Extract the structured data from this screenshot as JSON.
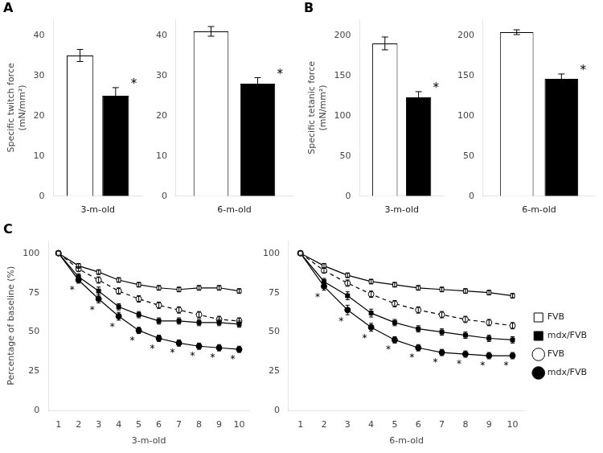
{
  "chart_data": [
    {
      "type": "bar",
      "title": "A",
      "categories": [
        "3-m-old"
      ],
      "series": [
        {
          "name": "FVB",
          "color": "#ffffff",
          "values": [
            35
          ],
          "errors": [
            1.5
          ]
        },
        {
          "name": "mdx/FVB",
          "color": "#000000",
          "values": [
            25
          ],
          "errors": [
            2.0
          ]
        }
      ],
      "ylabel": "Specific twitch force\n(mN/mm²)",
      "ylim": [
        0,
        44
      ],
      "yticks": [
        0,
        10,
        20,
        30,
        40
      ],
      "grid": false,
      "annotations": [
        {
          "text": "*",
          "series": "mdx/FVB",
          "category": "3-m-old"
        }
      ]
    },
    {
      "type": "bar",
      "categories": [
        "6-m-old"
      ],
      "series": [
        {
          "name": "FVB",
          "color": "#ffffff",
          "values": [
            41
          ],
          "errors": [
            1.2
          ]
        },
        {
          "name": "mdx/FVB",
          "color": "#000000",
          "values": [
            28
          ],
          "errors": [
            1.5
          ]
        }
      ],
      "ylim": [
        0,
        44
      ],
      "yticks": [
        0,
        10,
        20,
        30,
        40
      ],
      "grid": false,
      "annotations": [
        {
          "text": "*",
          "series": "mdx/FVB",
          "category": "6-m-old"
        }
      ]
    },
    {
      "type": "bar",
      "title": "B",
      "categories": [
        "3-m-old"
      ],
      "series": [
        {
          "name": "FVB",
          "color": "#ffffff",
          "values": [
            190
          ],
          "errors": [
            8
          ]
        },
        {
          "name": "mdx/FVB",
          "color": "#000000",
          "values": [
            123
          ],
          "errors": [
            7
          ]
        }
      ],
      "ylabel": "Specific tetanic force\n(mN/mm²)",
      "ylim": [
        0,
        220
      ],
      "yticks": [
        0,
        50,
        100,
        150,
        200
      ],
      "grid": false,
      "annotations": [
        {
          "text": "*",
          "series": "mdx/FVB",
          "category": "3-m-old"
        }
      ]
    },
    {
      "type": "bar",
      "categories": [
        "6-m-old"
      ],
      "series": [
        {
          "name": "FVB",
          "color": "#ffffff",
          "values": [
            204
          ],
          "errors": [
            3
          ]
        },
        {
          "name": "mdx/FVB",
          "color": "#000000",
          "values": [
            146
          ],
          "errors": [
            6
          ]
        }
      ],
      "ylim": [
        0,
        220
      ],
      "yticks": [
        0,
        50,
        100,
        150,
        200
      ],
      "grid": false,
      "annotations": [
        {
          "text": "*",
          "series": "mdx/FVB",
          "category": "6-m-old"
        }
      ]
    },
    {
      "type": "line",
      "title": "C",
      "x": [
        1,
        2,
        3,
        4,
        5,
        6,
        7,
        8,
        9,
        10
      ],
      "xlim": [
        0.5,
        10.5
      ],
      "xticks": [
        1,
        2,
        3,
        4,
        5,
        6,
        7,
        8,
        9,
        10
      ],
      "xlabel": "3-m-old",
      "ylabel": "Percentage of baseline (%)",
      "ylim": [
        0,
        108
      ],
      "yticks": [
        0,
        25,
        50,
        75,
        100
      ],
      "grid": false,
      "series": [
        {
          "name": "FVB",
          "color": "#ffffff",
          "marker": "square",
          "line_style": "solid",
          "values": [
            100,
            92,
            88,
            83,
            80,
            78,
            77,
            78,
            78,
            76
          ],
          "errors": [
            0,
            1.5,
            1.5,
            1.5,
            1.5,
            1.5,
            1.5,
            1.5,
            1.5,
            1.5
          ]
        },
        {
          "name": "mdx/FVB",
          "color": "#000000",
          "marker": "square",
          "line_style": "solid",
          "values": [
            100,
            85,
            76,
            66,
            61,
            57,
            57,
            56,
            56,
            55
          ],
          "errors": [
            0,
            2,
            2.5,
            2,
            2,
            2,
            2,
            2,
            2,
            2
          ]
        },
        {
          "name": "FVB",
          "color": "#ffffff",
          "marker": "circle",
          "line_style": "dashed",
          "values": [
            100,
            90,
            83,
            76,
            71,
            67,
            64,
            61,
            58,
            57
          ],
          "errors": [
            0,
            1.5,
            2,
            2,
            2,
            2,
            2,
            2,
            2,
            2
          ]
        },
        {
          "name": "mdx/FVB",
          "color": "#000000",
          "marker": "circle",
          "line_style": "solid",
          "values": [
            100,
            83,
            71,
            60,
            51,
            46,
            43,
            41,
            40,
            39
          ],
          "errors": [
            0,
            2,
            2.5,
            2.5,
            2,
            2,
            2,
            2,
            2,
            2
          ]
        }
      ],
      "annotations": [
        {
          "text": "*",
          "x": 2
        },
        {
          "text": "*",
          "x": 3
        },
        {
          "text": "*",
          "x": 4
        },
        {
          "text": "*",
          "x": 5
        },
        {
          "text": "*",
          "x": 6
        },
        {
          "text": "*",
          "x": 7
        },
        {
          "text": "*",
          "x": 8
        },
        {
          "text": "*",
          "x": 9
        },
        {
          "text": "*",
          "x": 10
        }
      ]
    },
    {
      "type": "line",
      "x": [
        1,
        2,
        3,
        4,
        5,
        6,
        7,
        8,
        9,
        10
      ],
      "xlim": [
        0.5,
        10.5
      ],
      "xticks": [
        1,
        2,
        3,
        4,
        5,
        6,
        7,
        8,
        9,
        10
      ],
      "xlabel": "6-m-old",
      "ylim": [
        0,
        108
      ],
      "yticks": [
        0,
        25,
        50,
        75,
        100
      ],
      "grid": false,
      "legend": "right",
      "series": [
        {
          "name": "FVB",
          "color": "#ffffff",
          "marker": "square",
          "line_style": "solid",
          "values": [
            100,
            92,
            86,
            82,
            80,
            78,
            77,
            76,
            75,
            73
          ],
          "errors": [
            0,
            1.5,
            1.5,
            1.5,
            1.5,
            1.5,
            1.5,
            1.5,
            1.5,
            1.5
          ]
        },
        {
          "name": "mdx/FVB",
          "color": "#000000",
          "marker": "square",
          "line_style": "solid",
          "values": [
            100,
            82,
            73,
            62,
            56,
            52,
            50,
            48,
            46,
            45
          ],
          "errors": [
            0,
            2,
            2.5,
            2.5,
            2,
            2,
            2,
            2,
            2,
            2
          ]
        },
        {
          "name": "FVB",
          "color": "#ffffff",
          "marker": "circle",
          "line_style": "dashed",
          "values": [
            100,
            89,
            81,
            74,
            68,
            64,
            61,
            58,
            56,
            54
          ],
          "errors": [
            0,
            1.5,
            2,
            2,
            2,
            2,
            2,
            2,
            2,
            2
          ]
        },
        {
          "name": "mdx/FVB",
          "color": "#000000",
          "marker": "circle",
          "line_style": "solid",
          "values": [
            100,
            79,
            64,
            53,
            45,
            40,
            37,
            36,
            35,
            35
          ],
          "errors": [
            0,
            2.5,
            3,
            2.5,
            2,
            2,
            2,
            2,
            2,
            2
          ]
        }
      ],
      "annotations": [
        {
          "text": "*",
          "x": 2
        },
        {
          "text": "*",
          "x": 3
        },
        {
          "text": "*",
          "x": 4
        },
        {
          "text": "*",
          "x": 5
        },
        {
          "text": "*",
          "x": 6
        },
        {
          "text": "*",
          "x": 7
        },
        {
          "text": "*",
          "x": 8
        },
        {
          "text": "*",
          "x": 9
        },
        {
          "text": "*",
          "x": 10
        }
      ]
    }
  ]
}
